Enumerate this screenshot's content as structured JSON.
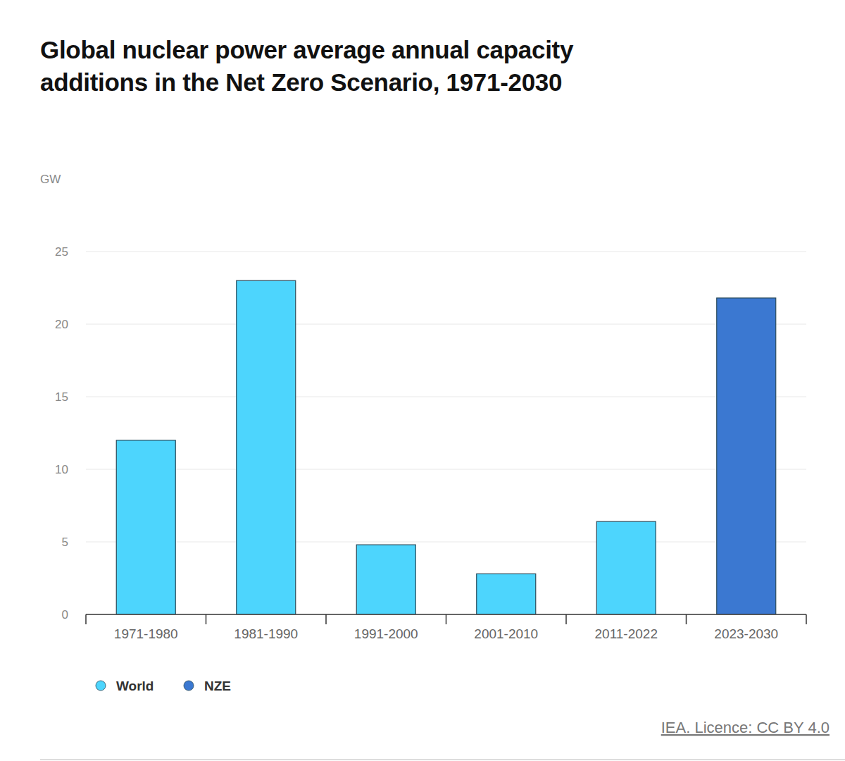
{
  "chart_data": {
    "type": "bar",
    "title": "Global nuclear power average annual capacity additions in the Net Zero Scenario, 1971-2030",
    "y_label": "GW",
    "categories": [
      "1971-1980",
      "1981-1990",
      "1991-2000",
      "2001-2010",
      "2011-2022",
      "2023-2030"
    ],
    "series": [
      {
        "name": "World",
        "color": "#4dd5fd",
        "values": [
          12,
          23,
          4.8,
          2.8,
          6.4,
          null
        ]
      },
      {
        "name": "NZE",
        "color": "#3b78d1",
        "values": [
          null,
          null,
          null,
          null,
          null,
          21.8
        ]
      }
    ],
    "stacked": true,
    "ylim": [
      0,
      25
    ],
    "yticks": [
      0,
      5,
      10,
      15,
      20,
      25
    ],
    "grid": true,
    "legend": "bottom",
    "source": "IEA. Licence: CC BY 4.0"
  }
}
